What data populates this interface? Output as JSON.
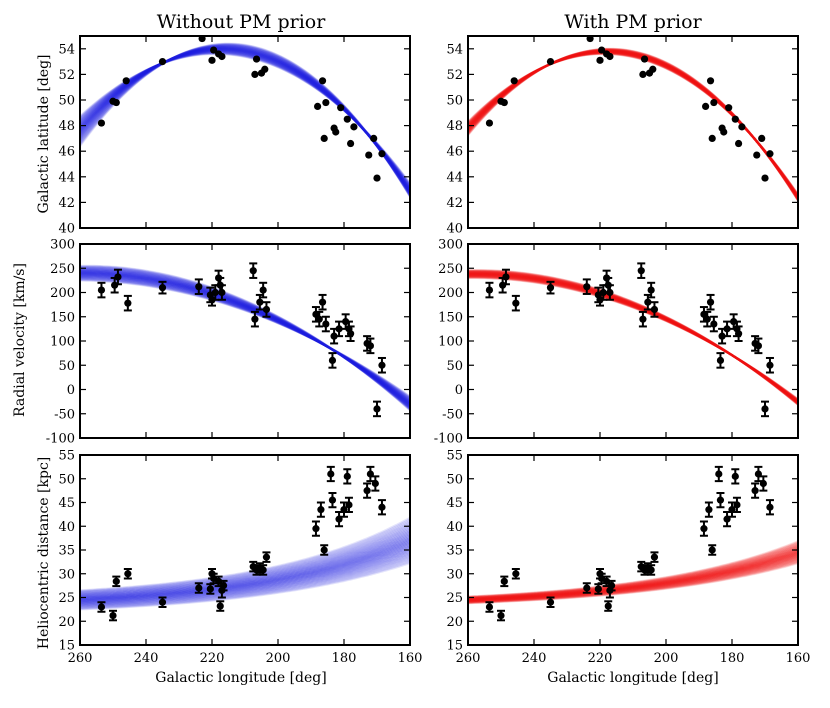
{
  "chart_data": {
    "type": "scatter",
    "figure": "Orbit fits to stream data, two columns x three rows",
    "columns": [
      {
        "title": "Without PM prior",
        "curve_color": "#1f1fe0"
      },
      {
        "title": "With PM prior",
        "curve_color": "#f01414"
      }
    ],
    "xlabel": "Galactic longitude [deg]",
    "xlim": [
      260,
      160
    ],
    "xticks": [
      260,
      240,
      220,
      200,
      180,
      160
    ],
    "marker_color": "#000000",
    "rows": [
      {
        "key": "b",
        "ylabel": "Galactic latitude [deg]",
        "ylim": [
          40,
          55
        ],
        "yticks": [
          40,
          42,
          44,
          46,
          48,
          50,
          52,
          54
        ],
        "points": [
          {
            "l": 253.5,
            "v": 48.2
          },
          {
            "l": 250.0,
            "v": 49.9
          },
          {
            "l": 249.0,
            "v": 49.8
          },
          {
            "l": 246.0,
            "v": 51.5
          },
          {
            "l": 235.0,
            "v": 53.0
          },
          {
            "l": 223.0,
            "v": 54.8
          },
          {
            "l": 220.0,
            "v": 53.1
          },
          {
            "l": 219.5,
            "v": 53.9
          },
          {
            "l": 218.0,
            "v": 53.6
          },
          {
            "l": 217.0,
            "v": 53.4
          },
          {
            "l": 207.0,
            "v": 52.0
          },
          {
            "l": 206.5,
            "v": 53.2
          },
          {
            "l": 205.0,
            "v": 52.1
          },
          {
            "l": 204.0,
            "v": 52.4
          },
          {
            "l": 188.0,
            "v": 49.5
          },
          {
            "l": 186.5,
            "v": 51.5
          },
          {
            "l": 185.5,
            "v": 49.8
          },
          {
            "l": 186.0,
            "v": 47.0
          },
          {
            "l": 183.0,
            "v": 47.8
          },
          {
            "l": 182.5,
            "v": 47.5
          },
          {
            "l": 181.0,
            "v": 49.4
          },
          {
            "l": 179.0,
            "v": 48.5
          },
          {
            "l": 178.0,
            "v": 46.6
          },
          {
            "l": 177.0,
            "v": 47.9
          },
          {
            "l": 172.5,
            "v": 45.7
          },
          {
            "l": 171.0,
            "v": 47.0
          },
          {
            "l": 170.0,
            "v": 43.9
          },
          {
            "l": 168.5,
            "v": 45.8
          }
        ],
        "curves": [
          {
            "column": 0,
            "center_ab": [
              54.0,
              217.0,
              0.0034
            ],
            "lo_ab": [
              53.6,
              219.0,
              0.0029
            ],
            "hi_ab": [
              54.4,
              215.0,
              0.00395
            ]
          },
          {
            "column": 1,
            "center_ab": [
              53.8,
              218.0,
              0.0034
            ],
            "lo_ab": [
              53.6,
              219.0,
              0.00315
            ],
            "hi_ab": [
              54.0,
              217.0,
              0.00365
            ]
          }
        ]
      },
      {
        "key": "vr",
        "ylabel": "Radial velocity [km/s]",
        "ylim": [
          -100,
          300
        ],
        "yticks": [
          -100,
          -50,
          0,
          50,
          100,
          150,
          200,
          250,
          300
        ],
        "points": [
          {
            "l": 253.5,
            "v": 205,
            "e": 15
          },
          {
            "l": 249.5,
            "v": 215,
            "e": 15
          },
          {
            "l": 248.5,
            "v": 232,
            "e": 15
          },
          {
            "l": 245.5,
            "v": 178,
            "e": 15
          },
          {
            "l": 235.0,
            "v": 210,
            "e": 12
          },
          {
            "l": 224.0,
            "v": 212,
            "e": 15
          },
          {
            "l": 220.5,
            "v": 195,
            "e": 15
          },
          {
            "l": 220.0,
            "v": 185,
            "e": 12
          },
          {
            "l": 219.0,
            "v": 200,
            "e": 15
          },
          {
            "l": 218.0,
            "v": 230,
            "e": 15
          },
          {
            "l": 217.5,
            "v": 215,
            "e": 15
          },
          {
            "l": 217.0,
            "v": 200,
            "e": 15
          },
          {
            "l": 207.5,
            "v": 245,
            "e": 15
          },
          {
            "l": 207.0,
            "v": 145,
            "e": 15
          },
          {
            "l": 205.5,
            "v": 180,
            "e": 15
          },
          {
            "l": 204.5,
            "v": 205,
            "e": 15
          },
          {
            "l": 203.5,
            "v": 165,
            "e": 15
          },
          {
            "l": 188.5,
            "v": 155,
            "e": 15
          },
          {
            "l": 187.5,
            "v": 145,
            "e": 15
          },
          {
            "l": 186.5,
            "v": 180,
            "e": 15
          },
          {
            "l": 185.5,
            "v": 135,
            "e": 15
          },
          {
            "l": 183.5,
            "v": 60,
            "e": 15
          },
          {
            "l": 183.0,
            "v": 110,
            "e": 15
          },
          {
            "l": 181.5,
            "v": 125,
            "e": 15
          },
          {
            "l": 179.5,
            "v": 140,
            "e": 15
          },
          {
            "l": 178.5,
            "v": 125,
            "e": 15
          },
          {
            "l": 178.0,
            "v": 115,
            "e": 15
          },
          {
            "l": 173.0,
            "v": 95,
            "e": 15
          },
          {
            "l": 172.0,
            "v": 90,
            "e": 15
          },
          {
            "l": 170.0,
            "v": -40,
            "e": 15
          },
          {
            "l": 168.5,
            "v": 50,
            "e": 15
          }
        ],
        "curves": [
          {
            "column": 0,
            "center_ab": [
              240.0,
              260.0,
              0.027
            ],
            "lo_ab": [
              225.0,
              262.0,
              0.023
            ],
            "hi_ab": [
              255.0,
              258.0,
              0.031
            ]
          },
          {
            "column": 1,
            "center_ab": [
              238.0,
              258.0,
              0.0275
            ],
            "lo_ab": [
              230.0,
              259.0,
              0.0255
            ],
            "hi_ab": [
              246.0,
              257.0,
              0.0295
            ]
          }
        ]
      },
      {
        "key": "d",
        "ylabel": "Heliocentric distance [kpc]",
        "ylim": [
          15,
          55
        ],
        "yticks": [
          15,
          20,
          25,
          30,
          35,
          40,
          45,
          50,
          55
        ],
        "points": [
          {
            "l": 253.5,
            "v": 23.0,
            "e": 1.0
          },
          {
            "l": 250.0,
            "v": 21.2,
            "e": 1.0
          },
          {
            "l": 249.0,
            "v": 28.4,
            "e": 1.0
          },
          {
            "l": 245.5,
            "v": 30.0,
            "e": 1.0
          },
          {
            "l": 235.0,
            "v": 24.0,
            "e": 1.0
          },
          {
            "l": 224.0,
            "v": 27.0,
            "e": 1.0
          },
          {
            "l": 220.5,
            "v": 26.8,
            "e": 1.0
          },
          {
            "l": 220.0,
            "v": 30.0,
            "e": 1.0
          },
          {
            "l": 219.5,
            "v": 29.0,
            "e": 1.0
          },
          {
            "l": 218.0,
            "v": 28.4,
            "e": 1.0
          },
          {
            "l": 217.5,
            "v": 23.2,
            "e": 1.0
          },
          {
            "l": 217.0,
            "v": 26.5,
            "e": 1.5
          },
          {
            "l": 216.5,
            "v": 27.5,
            "e": 1.0
          },
          {
            "l": 207.5,
            "v": 31.5,
            "e": 1.0
          },
          {
            "l": 206.5,
            "v": 30.8,
            "e": 1.0
          },
          {
            "l": 205.5,
            "v": 31.2,
            "e": 1.0
          },
          {
            "l": 204.5,
            "v": 30.8,
            "e": 1.0
          },
          {
            "l": 203.5,
            "v": 33.5,
            "e": 1.0
          },
          {
            "l": 188.5,
            "v": 39.5,
            "e": 1.5
          },
          {
            "l": 187.0,
            "v": 43.5,
            "e": 1.5
          },
          {
            "l": 186.0,
            "v": 35.0,
            "e": 1.0
          },
          {
            "l": 184.0,
            "v": 51.0,
            "e": 1.5
          },
          {
            "l": 183.5,
            "v": 45.5,
            "e": 1.5
          },
          {
            "l": 181.5,
            "v": 41.5,
            "e": 1.5
          },
          {
            "l": 180.0,
            "v": 43.5,
            "e": 1.5
          },
          {
            "l": 179.0,
            "v": 50.5,
            "e": 1.5
          },
          {
            "l": 178.5,
            "v": 44.5,
            "e": 1.5
          },
          {
            "l": 173.0,
            "v": 47.5,
            "e": 1.5
          },
          {
            "l": 172.0,
            "v": 51.0,
            "e": 1.5
          },
          {
            "l": 170.5,
            "v": 49.0,
            "e": 1.5
          },
          {
            "l": 168.5,
            "v": 44.0,
            "e": 1.5
          }
        ],
        "curves": [
          {
            "column": 0,
            "exp_ab": [
              24.5,
              9.0,
              0.0215
            ],
            "exp_lo": [
              22.5,
              8.0,
              0.0205
            ],
            "exp_hi": [
              26.5,
              10.0,
              0.0225
            ]
          },
          {
            "column": 1,
            "exp_ab": [
              24.5,
              8.0,
              0.0205
            ],
            "exp_lo": [
              23.8,
              7.3,
              0.02
            ],
            "exp_hi": [
              25.2,
              8.8,
              0.0212
            ]
          }
        ]
      }
    ]
  }
}
